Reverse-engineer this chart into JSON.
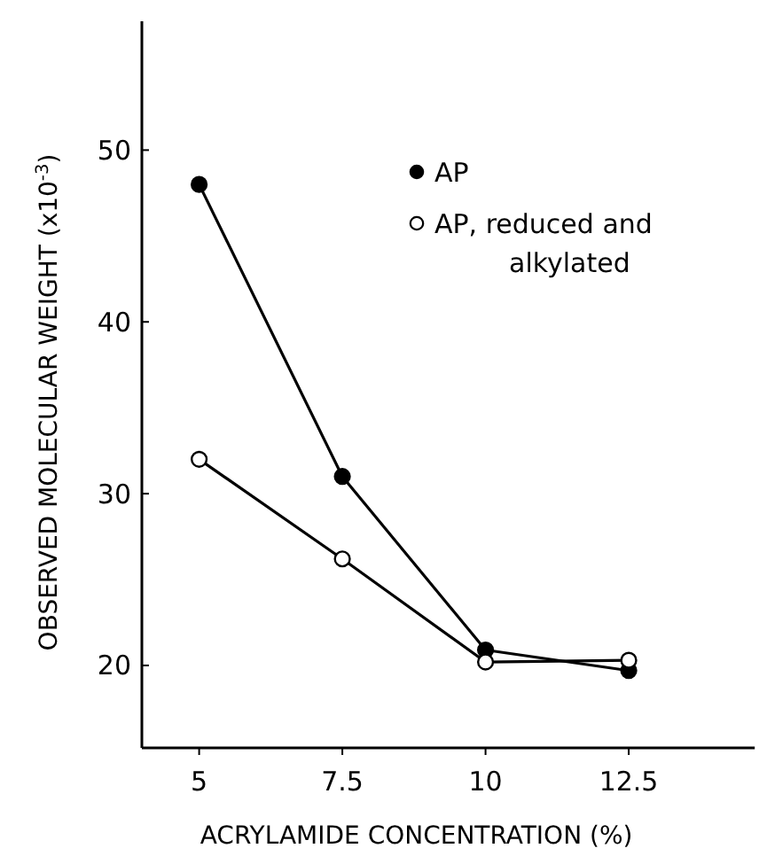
{
  "chart_data": {
    "type": "line",
    "xlabel": "ACRYLAMIDE  CONCENTRATION (%)",
    "ylabel": "OBSERVED MOLECULAR WEIGHT (x10$^{-3}$)",
    "x": [
      5,
      7.5,
      10,
      12.5
    ],
    "xlim": [
      4,
      14.7
    ],
    "xticks": [
      5,
      7.5,
      10,
      12.5
    ],
    "ylim": [
      15.2,
      57.5
    ],
    "yticks": [
      20,
      30,
      40,
      50
    ],
    "grid": false,
    "legend": "top right",
    "marker": "circle",
    "line_style": "solid",
    "series": [
      {
        "name": "AP",
        "color": "#000000",
        "values": [
          48,
          31,
          20.9,
          19.7
        ]
      },
      {
        "name": "AP, reduced and alkylated",
        "color": "#ffffff",
        "values": [
          32,
          26.2,
          20.2,
          20.3
        ]
      }
    ]
  }
}
